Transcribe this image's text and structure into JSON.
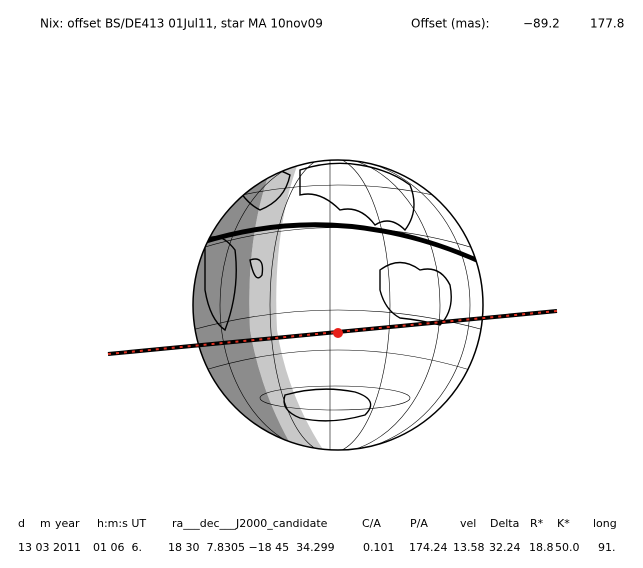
{
  "header": {
    "title": "Nix: offset BS/DE413 01Jul11, star MA 10nov09",
    "offset_label": "Offset (mas):",
    "offset_values": [
      "−89.2",
      "177.8"
    ]
  },
  "table": {
    "columns": [
      "d",
      "m",
      "year",
      "h:m:s UT",
      "ra___dec___J2000_candidate",
      "C/A",
      "P/A",
      "vel",
      "Delta",
      "R*",
      "K*",
      "long"
    ],
    "rows": [
      [
        "13 03 2011",
        "01 06  6.",
        "18 30  7.8305 −18 45  34.299",
        "0.101",
        "174.24",
        "13.58",
        "32.24",
        "18.8",
        "50.0",
        "91."
      ]
    ]
  }
}
